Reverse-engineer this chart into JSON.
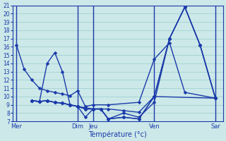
{
  "xlabel": "Température (°c)",
  "background_color": "#cce8e8",
  "grid_color": "#99cccc",
  "line_color": "#1a3aaa",
  "ylim": [
    7,
    21
  ],
  "yticks": [
    7,
    8,
    9,
    10,
    11,
    12,
    13,
    14,
    15,
    16,
    17,
    18,
    19,
    20,
    21
  ],
  "day_labels": [
    "Mer",
    "Dim",
    "Jeu",
    "Ven",
    "Sar"
  ],
  "day_tick_x": [
    0,
    8,
    10,
    18,
    26
  ],
  "xlim": [
    -0.5,
    27
  ],
  "vlines": [
    0,
    8,
    10,
    18,
    26
  ],
  "lines": [
    {
      "x": [
        0,
        1,
        2,
        3,
        4,
        5,
        6,
        7,
        8,
        9,
        10,
        12,
        16,
        18,
        20,
        22,
        26
      ],
      "y": [
        16.2,
        13.3,
        12.0,
        11.0,
        10.7,
        10.5,
        10.3,
        10.1,
        10.7,
        8.8,
        9.0,
        9.0,
        9.3,
        14.5,
        16.5,
        10.5,
        9.8
      ]
    },
    {
      "x": [
        2,
        3,
        4,
        5,
        6,
        7,
        8,
        9,
        10,
        11,
        12,
        14,
        16,
        18,
        20,
        22,
        24,
        26
      ],
      "y": [
        9.5,
        9.4,
        14.0,
        15.3,
        13.0,
        9.0,
        8.8,
        7.5,
        8.5,
        8.5,
        7.3,
        8.0,
        7.5,
        9.3,
        17.0,
        20.8,
        16.2,
        9.8
      ]
    },
    {
      "x": [
        2,
        3,
        4,
        5,
        6,
        7,
        8,
        9,
        10,
        11,
        12,
        14,
        16,
        18,
        20,
        22,
        24,
        26
      ],
      "y": [
        9.5,
        9.4,
        9.5,
        9.3,
        9.2,
        9.0,
        8.8,
        8.5,
        8.5,
        8.5,
        7.3,
        7.5,
        7.3,
        10.0,
        17.0,
        20.8,
        16.2,
        9.8
      ]
    },
    {
      "x": [
        2,
        3,
        4,
        5,
        6,
        7,
        8,
        9,
        10,
        11,
        12,
        14,
        16,
        18,
        20,
        22,
        24,
        26
      ],
      "y": [
        9.5,
        9.4,
        9.5,
        9.3,
        9.2,
        9.0,
        8.8,
        8.5,
        8.5,
        8.5,
        7.3,
        7.5,
        7.3,
        10.0,
        17.0,
        20.8,
        16.2,
        9.8
      ]
    },
    {
      "x": [
        2,
        3,
        4,
        5,
        6,
        7,
        8,
        10,
        12,
        14,
        16,
        18,
        26
      ],
      "y": [
        9.5,
        9.4,
        9.5,
        9.3,
        9.2,
        9.0,
        8.8,
        8.5,
        8.5,
        8.3,
        8.1,
        10.0,
        9.8
      ]
    }
  ]
}
